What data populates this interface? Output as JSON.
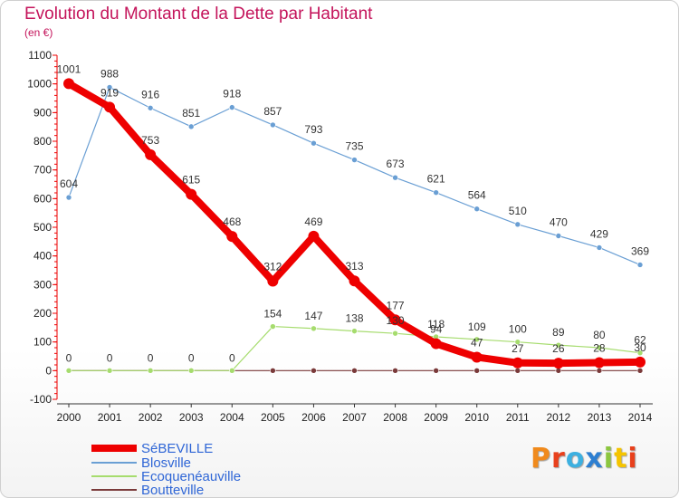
{
  "title": "Evolution du Montant de la Dette par Habitant",
  "subtitle": "(en €)",
  "brand": {
    "text": "Proxiti",
    "colors": [
      "#f08a1c",
      "#e8401c",
      "#3db0e0",
      "#2d7fd1",
      "#8cc63f",
      "#f5c400",
      "#e8401c"
    ]
  },
  "chart_data": {
    "type": "line",
    "x": [
      2000,
      2001,
      2002,
      2003,
      2004,
      2005,
      2006,
      2007,
      2008,
      2009,
      2010,
      2011,
      2012,
      2013,
      2014
    ],
    "ylim": [
      -100,
      1100
    ],
    "yticks": [
      -100,
      0,
      100,
      200,
      300,
      400,
      500,
      600,
      700,
      800,
      900,
      1000,
      1100
    ],
    "xlabel": "",
    "ylabel": "",
    "grid": false,
    "legend": "bottom-left",
    "series": [
      {
        "name": "SéBEVILLE",
        "color": "#ee0000",
        "values": [
          1001,
          919,
          753,
          615,
          468,
          312,
          469,
          313,
          177,
          94,
          47,
          27,
          26,
          28,
          30
        ]
      },
      {
        "name": "Blosville",
        "color": "#6a9fd4",
        "values": [
          604,
          988,
          916,
          851,
          918,
          857,
          793,
          735,
          673,
          621,
          564,
          510,
          470,
          429,
          369
        ]
      },
      {
        "name": "Ecoquenéauville",
        "color": "#a6dc6e",
        "values": [
          0,
          0,
          0,
          0,
          0,
          154,
          147,
          138,
          130,
          118,
          109,
          100,
          89,
          80,
          62
        ]
      },
      {
        "name": "Boutteville",
        "color": "#7a3a3a",
        "values": [
          0,
          0,
          0,
          0,
          0,
          0,
          0,
          0,
          0,
          0,
          0,
          0,
          0,
          0,
          0
        ]
      }
    ]
  }
}
